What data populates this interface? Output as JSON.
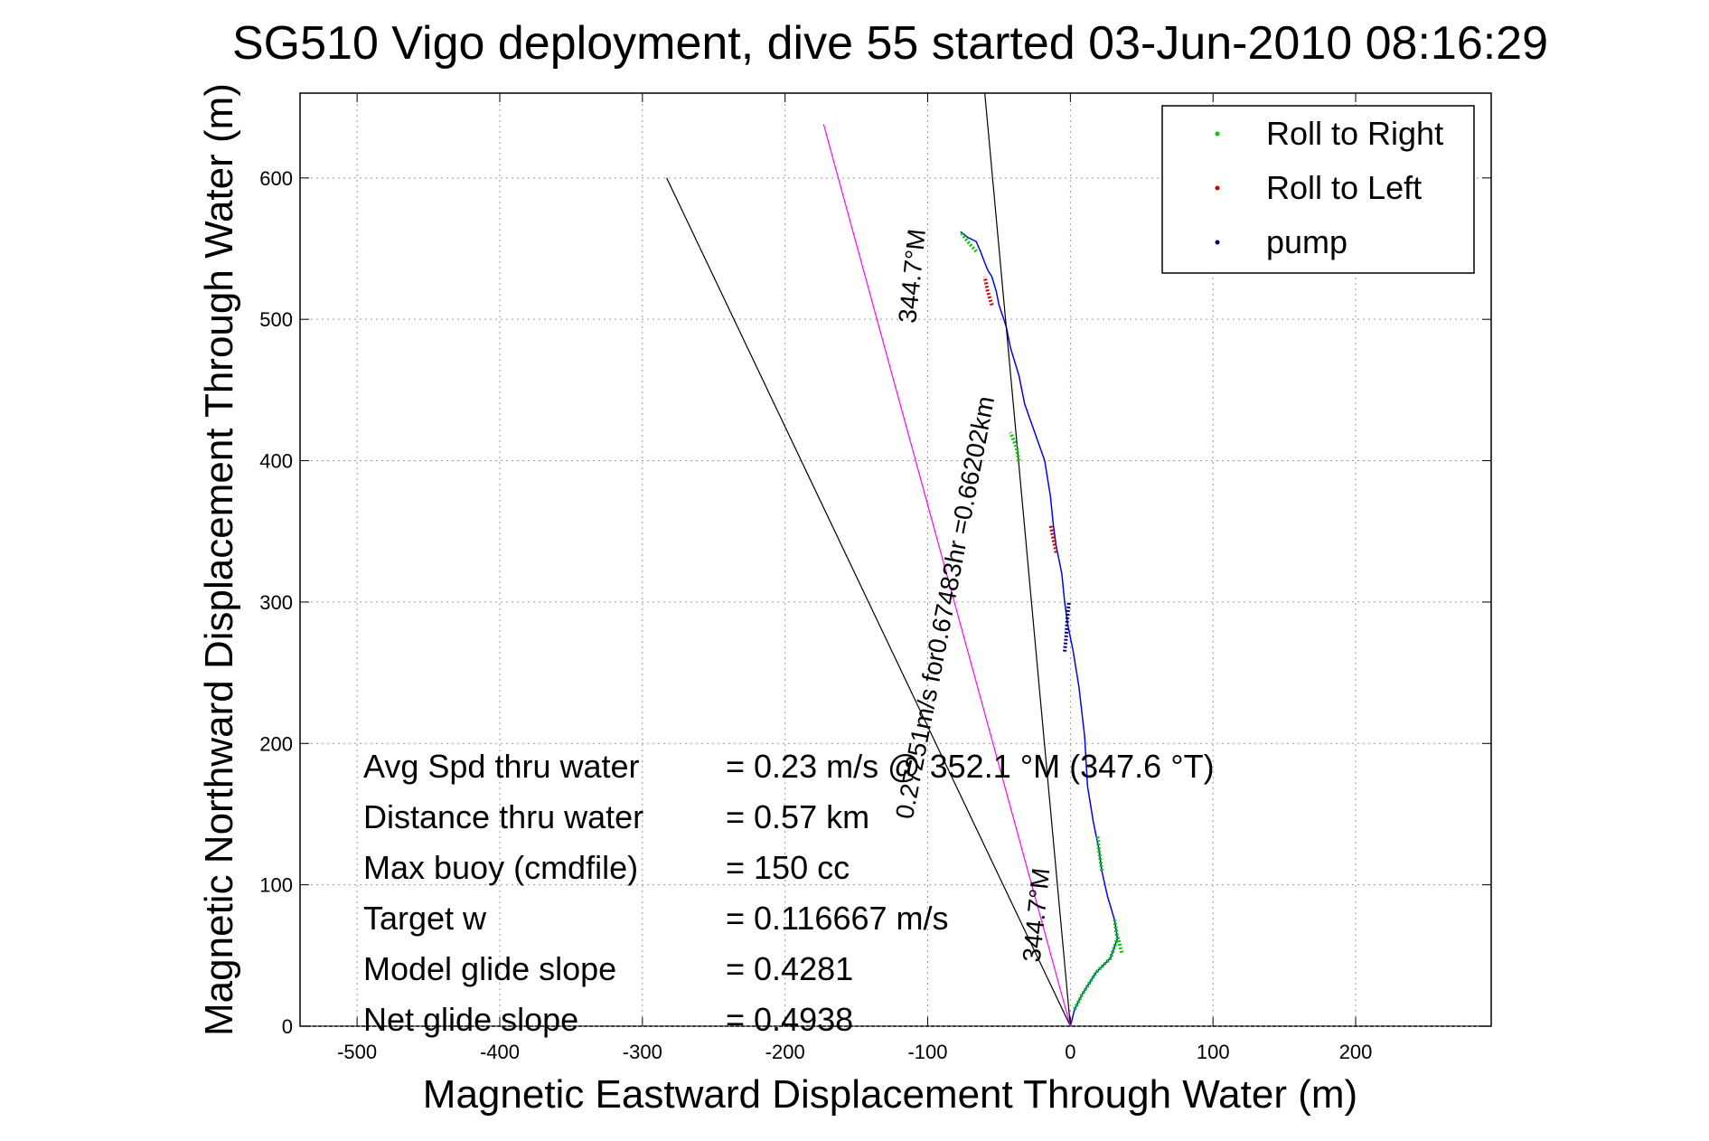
{
  "chart_data": {
    "type": "line",
    "title": "SG510 Vigo deployment, dive 55 started 03-Jun-2010 08:16:29",
    "xlabel": "Magnetic Eastward Displacement Through Water (m)",
    "ylabel": "Magnetic Northward Displacement Through Water (m)",
    "xlim": [
      -540,
      295
    ],
    "ylim": [
      0,
      660
    ],
    "xticks": [
      -500,
      -400,
      -300,
      -200,
      -100,
      0,
      100,
      200
    ],
    "yticks": [
      0,
      100,
      200,
      300,
      400,
      500,
      600
    ],
    "grid": true,
    "legend_position": "top-right",
    "legend": [
      {
        "label": "Roll to Right",
        "color": "#00cc00"
      },
      {
        "label": "Roll to Left",
        "color": "#cc0000"
      },
      {
        "label": "pump",
        "color": "#000080"
      }
    ],
    "series": [
      {
        "kind": "track",
        "color": "#0000ff",
        "x": [
          0,
          3,
          8,
          18,
          28,
          33,
          31,
          26,
          22,
          20,
          16,
          12,
          10,
          6,
          2,
          -2,
          -4,
          -6,
          -10,
          -12,
          -14,
          -18,
          -25,
          -32,
          -36,
          -42,
          -45,
          -50,
          -52,
          -55,
          -58,
          -60,
          -63,
          -66,
          -72,
          -77
        ],
        "y": [
          0,
          12,
          22,
          38,
          48,
          62,
          75,
          92,
          110,
          125,
          145,
          170,
          205,
          240,
          265,
          285,
          300,
          320,
          340,
          355,
          375,
          400,
          420,
          440,
          460,
          480,
          495,
          510,
          520,
          530,
          535,
          540,
          548,
          555,
          558,
          562
        ]
      },
      {
        "kind": "reference",
        "color": "#000000",
        "x": [
          0,
          -283
        ],
        "y": [
          0,
          600
        ]
      },
      {
        "kind": "reference",
        "color": "#000000",
        "x": [
          0,
          -60
        ],
        "y": [
          0,
          660
        ]
      },
      {
        "kind": "heading",
        "color": "#ff00ff",
        "x": [
          0,
          -173
        ],
        "y": [
          0,
          638
        ]
      }
    ],
    "segments": [
      {
        "type": "Roll to Right",
        "color": "#00cc00",
        "x": [
          3,
          8,
          18,
          28,
          33,
          31
        ],
        "y": [
          12,
          22,
          38,
          48,
          62,
          75
        ]
      },
      {
        "type": "Roll to Right",
        "color": "#00cc00",
        "x": [
          22,
          20,
          19
        ],
        "y": [
          110,
          125,
          135
        ]
      },
      {
        "type": "Roll to Right",
        "color": "#00cc00",
        "x": [
          36,
          34,
          32
        ],
        "y": [
          52,
          60,
          66
        ]
      },
      {
        "type": "Roll to Right",
        "color": "#00cc00",
        "x": [
          -36,
          -38,
          -42
        ],
        "y": [
          400,
          410,
          420
        ]
      },
      {
        "type": "Roll to Right",
        "color": "#00cc00",
        "x": [
          -66,
          -72,
          -77
        ],
        "y": [
          548,
          555,
          562
        ]
      },
      {
        "type": "Roll to Left",
        "color": "#cc0000",
        "x": [
          -10,
          -12,
          -14
        ],
        "y": [
          335,
          345,
          355
        ]
      },
      {
        "type": "Roll to Left",
        "color": "#cc0000",
        "x": [
          -55,
          -58,
          -60
        ],
        "y": [
          510,
          520,
          530
        ]
      },
      {
        "type": "pump",
        "color": "#000080",
        "x": [
          -4,
          -3,
          -2,
          -1
        ],
        "y": [
          265,
          275,
          290,
          300
        ]
      }
    ],
    "annotations": [
      {
        "text": "344.7°M",
        "x": -105,
        "y": 530,
        "rotate": -84
      },
      {
        "text": "0.27251m/s for0.67483hr =0.66202km",
        "x": -82,
        "y": 295,
        "rotate": -79
      },
      {
        "text": "344.7°M",
        "x": -18,
        "y": 78,
        "rotate": -84
      }
    ],
    "stats": [
      {
        "label": "Avg Spd thru water",
        "value": "=  0.23 m/s @ 352.1 °M (347.6 °T)"
      },
      {
        "label": "Distance thru water",
        "value": "=  0.57 km"
      },
      {
        "label": "Max buoy (cmdfile)",
        "value": "= 150 cc"
      },
      {
        "label": "Target w",
        "value": "= 0.116667 m/s"
      },
      {
        "label": "Model glide slope",
        "value": "= 0.4281"
      },
      {
        "label": "Net glide slope",
        "value": "= 0.4938"
      }
    ]
  }
}
